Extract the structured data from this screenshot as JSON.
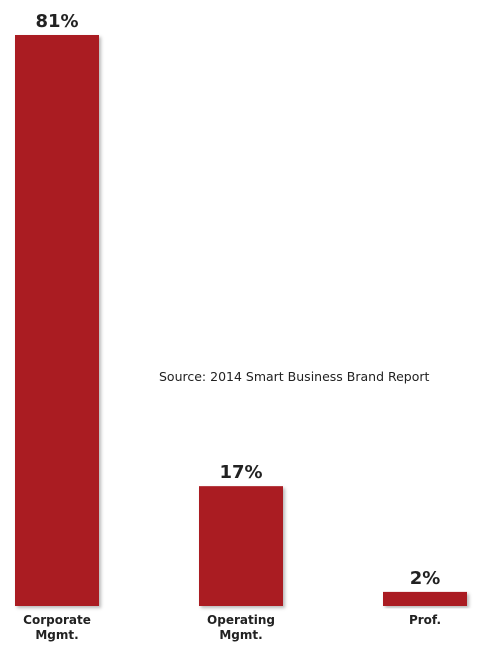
{
  "chart_data": {
    "type": "bar",
    "categories": [
      [
        "Corporate",
        "Mgmt."
      ],
      [
        "Operating",
        "Mgmt."
      ],
      [
        "Prof."
      ]
    ],
    "values": [
      81,
      17,
      2
    ],
    "value_labels": [
      "81%",
      "17%",
      "2%"
    ],
    "ylim": [
      0,
      81
    ],
    "grid": false,
    "bar_color": "#aa1e24",
    "annotation": "Source: 2014 Smart Business Brand Report"
  }
}
